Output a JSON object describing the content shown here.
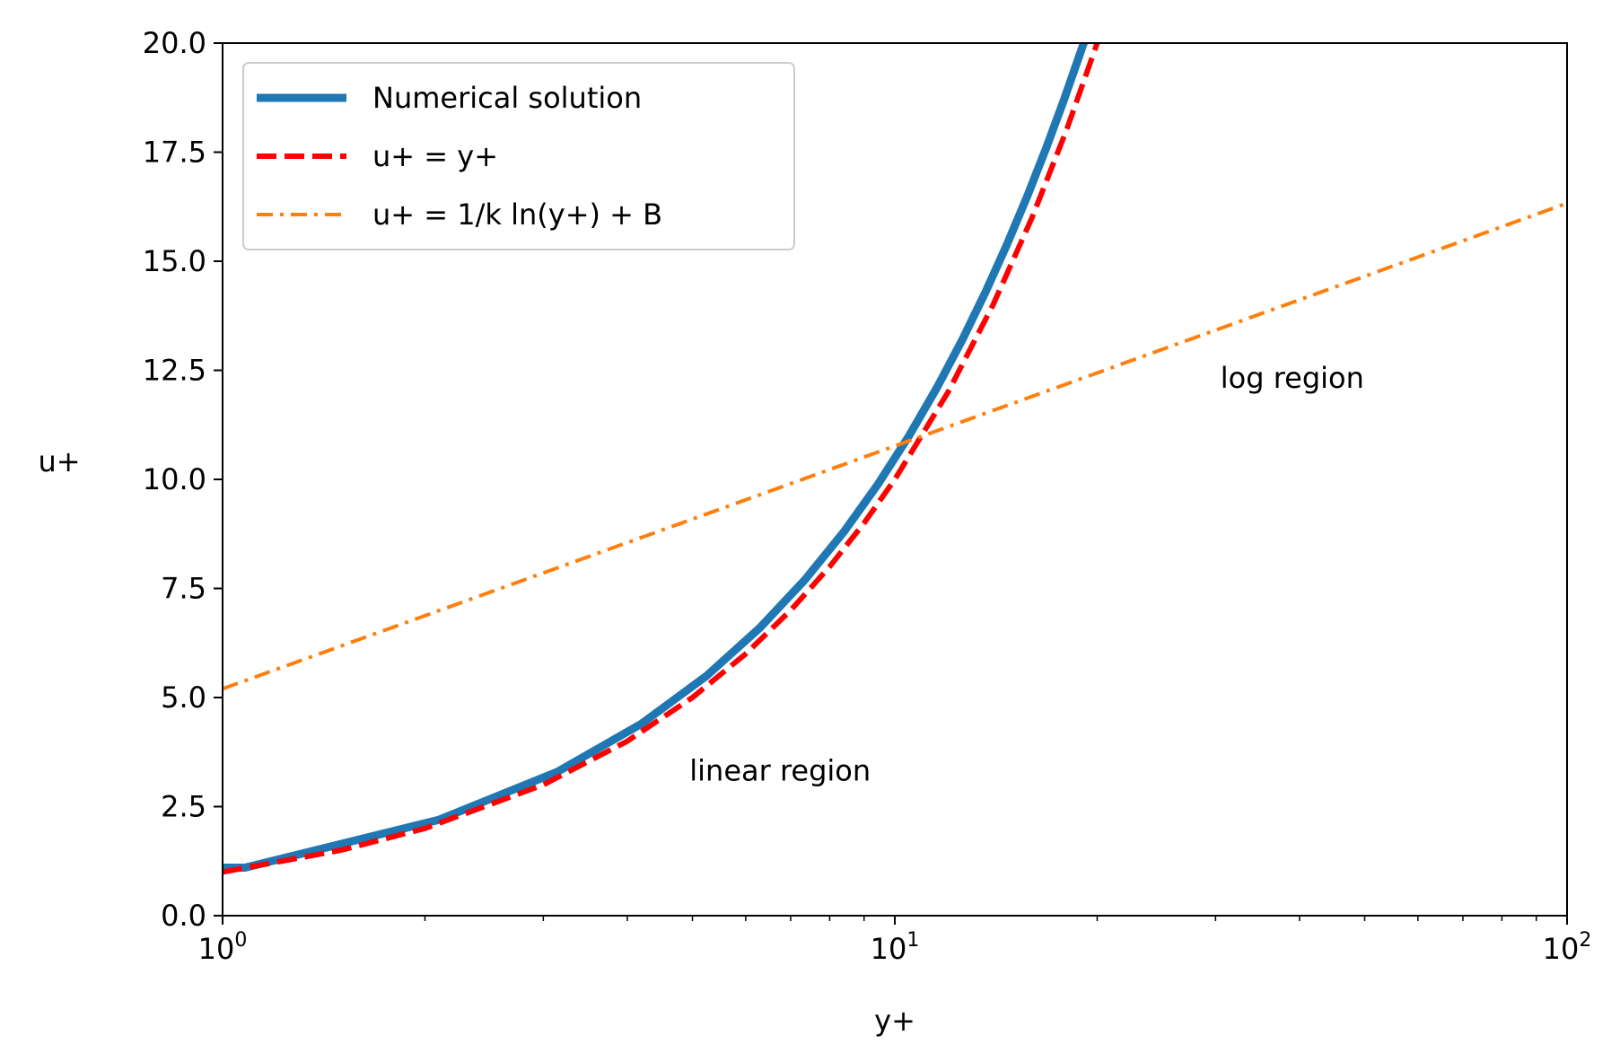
{
  "chart_data": {
    "type": "line",
    "title": "",
    "xlabel": "y+",
    "ylabel": "u+",
    "xscale": "log",
    "xlim": [
      1,
      100
    ],
    "ylim": [
      0,
      20
    ],
    "x_ticks": [
      {
        "value": 1,
        "base": "10",
        "exp": "0"
      },
      {
        "value": 10,
        "base": "10",
        "exp": "1"
      },
      {
        "value": 100,
        "base": "10",
        "exp": "2"
      }
    ],
    "y_ticks": [
      "0.0",
      "2.5",
      "5.0",
      "7.5",
      "10.0",
      "12.5",
      "15.0",
      "17.5",
      "20.0"
    ],
    "grid": false,
    "legend_position": "top-left",
    "series": [
      {
        "name": "Numerical solution",
        "color": "#1f77b4",
        "style": "solid",
        "x": [
          1.0,
          1.08,
          2.1,
          3.15,
          4.2,
          5.25,
          6.3,
          7.35,
          8.4,
          9.45,
          10.5,
          11.55,
          12.6,
          13.65,
          14.7,
          15.75,
          16.8,
          17.85,
          18.9,
          19.6
        ],
        "y": [
          1.1,
          1.1,
          2.2,
          3.3,
          4.4,
          5.5,
          6.6,
          7.7,
          8.8,
          9.9,
          11.0,
          12.1,
          13.2,
          14.3,
          15.4,
          16.5,
          17.6,
          18.7,
          19.8,
          20.5
        ]
      },
      {
        "name": "u+ = y+",
        "color": "#ff0000",
        "style": "dashed",
        "x": [
          1,
          1.5,
          2,
          3,
          4,
          5,
          6,
          7,
          8,
          9,
          10,
          12,
          14,
          16,
          18,
          20,
          20.5
        ],
        "y": [
          1,
          1.5,
          2,
          3,
          4,
          5,
          6,
          7,
          8,
          9,
          10,
          12,
          14,
          16,
          18,
          20,
          20.5
        ]
      },
      {
        "name": "u+ = 1/k ln(y+) + B",
        "color": "#ff7f0e",
        "style": "dashdot",
        "x": [
          1,
          100
        ],
        "y": [
          5.2,
          16.33
        ]
      }
    ],
    "annotations": [
      {
        "text": "linear region",
        "x": 4.95,
        "y": 3.1
      },
      {
        "text": "log region",
        "x": 30.5,
        "y": 12.1
      }
    ]
  }
}
